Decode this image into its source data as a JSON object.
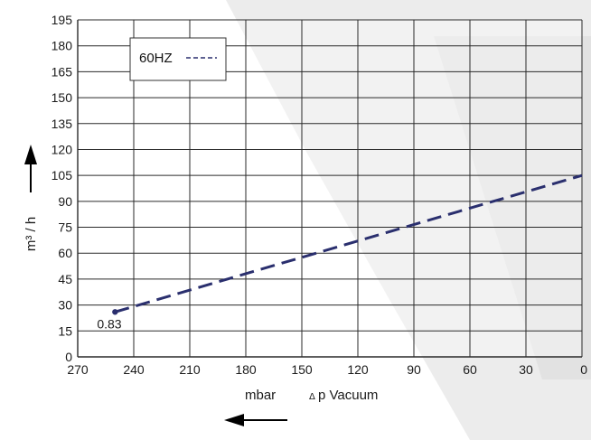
{
  "colors": {
    "series": "#2a2f6e",
    "grid": "#2a2a2a",
    "background_shape": "#e9e9e9",
    "arrow": "#000000"
  },
  "chart_data": {
    "type": "line",
    "orientation": "x_reversed",
    "xlim": [
      270,
      0
    ],
    "ylim": [
      0,
      195
    ],
    "x_ticks": [
      270,
      240,
      210,
      180,
      150,
      120,
      90,
      60,
      30,
      0
    ],
    "y_ticks": [
      0,
      15,
      30,
      45,
      60,
      75,
      90,
      105,
      120,
      135,
      150,
      165,
      180,
      195
    ],
    "xlabel_unit": "mbar",
    "xlabel_delta": "Δ",
    "xlabel": "p Vacuum",
    "ylabel": "m³ / h",
    "grid": true,
    "legend": {
      "position": "top-left",
      "label": "60HZ"
    },
    "series": [
      {
        "name": "60HZ",
        "style": "dashed",
        "x": [
          250,
          0
        ],
        "y": [
          26,
          105
        ]
      }
    ],
    "annotations": [
      {
        "text": "0.83",
        "x": 250,
        "y": 26
      }
    ]
  }
}
